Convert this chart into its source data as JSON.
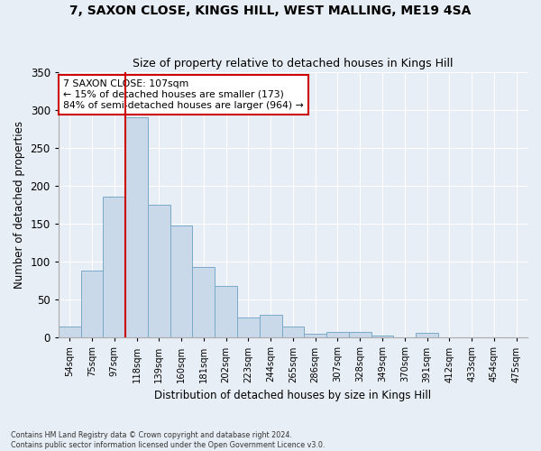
{
  "title": "7, SAXON CLOSE, KINGS HILL, WEST MALLING, ME19 4SA",
  "subtitle": "Size of property relative to detached houses in Kings Hill",
  "xlabel": "Distribution of detached houses by size in Kings Hill",
  "ylabel": "Number of detached properties",
  "bar_color": "#c9d9ea",
  "bar_edge_color": "#7aaac8",
  "background_color": "#e8eef5",
  "grid_color": "#ffffff",
  "categories": [
    "54sqm",
    "75sqm",
    "97sqm",
    "118sqm",
    "139sqm",
    "160sqm",
    "181sqm",
    "202sqm",
    "223sqm",
    "244sqm",
    "265sqm",
    "286sqm",
    "307sqm",
    "328sqm",
    "349sqm",
    "370sqm",
    "391sqm",
    "412sqm",
    "433sqm",
    "454sqm",
    "475sqm"
  ],
  "values": [
    14,
    88,
    185,
    290,
    175,
    148,
    93,
    68,
    27,
    30,
    15,
    5,
    7,
    8,
    3,
    0,
    6,
    0,
    0,
    0,
    0
  ],
  "property_label": "7 SAXON CLOSE: 107sqm",
  "annotation_line1": "← 15% of detached houses are smaller (173)",
  "annotation_line2": "84% of semi-detached houses are larger (964) →",
  "vline_color": "#cc0000",
  "annotation_box_color": "#ffffff",
  "annotation_box_edge": "#cc0000",
  "footer1": "Contains HM Land Registry data © Crown copyright and database right 2024.",
  "footer2": "Contains public sector information licensed under the Open Government Licence v3.0.",
  "ylim": [
    0,
    350
  ],
  "yticks": [
    0,
    50,
    100,
    150,
    200,
    250,
    300,
    350
  ]
}
